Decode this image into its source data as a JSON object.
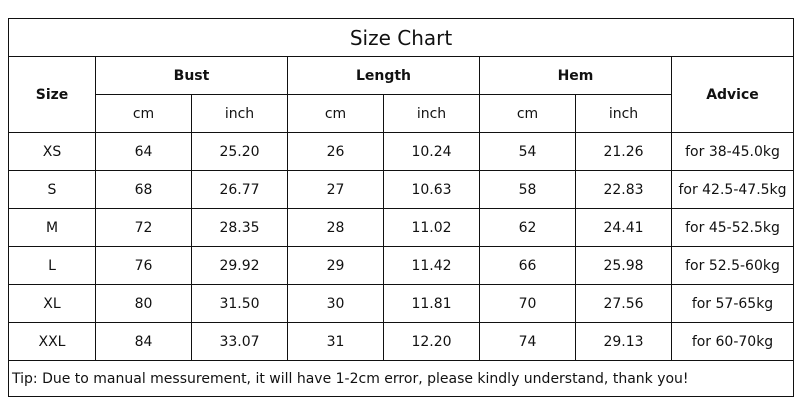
{
  "title": "Size Chart",
  "headers": {
    "size": "Size",
    "groups": [
      "Bust",
      "Length",
      "Hem"
    ],
    "units": [
      "cm",
      "inch",
      "cm",
      "inch",
      "cm",
      "inch"
    ],
    "advice": "Advice"
  },
  "rows": [
    [
      "XS",
      "64",
      "25.20",
      "26",
      "10.24",
      "54",
      "21.26",
      "for 38-45.0kg"
    ],
    [
      "S",
      "68",
      "26.77",
      "27",
      "10.63",
      "58",
      "22.83",
      "for 42.5-47.5kg"
    ],
    [
      "M",
      "72",
      "28.35",
      "28",
      "11.02",
      "62",
      "24.41",
      "for 45-52.5kg"
    ],
    [
      "L",
      "76",
      "29.92",
      "29",
      "11.42",
      "66",
      "25.98",
      "for 52.5-60kg"
    ],
    [
      "XL",
      "80",
      "31.50",
      "30",
      "11.81",
      "70",
      "27.56",
      "for 57-65kg"
    ],
    [
      "XXL",
      "84",
      "33.07",
      "31",
      "12.20",
      "74",
      "29.13",
      "for 60-70kg"
    ]
  ],
  "tip": "Tip: Due to manual messurement, it will have 1-2cm error, please kindly understand, thank you!"
}
